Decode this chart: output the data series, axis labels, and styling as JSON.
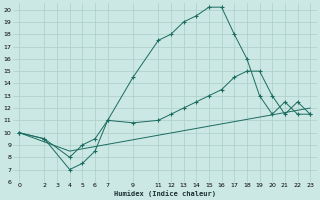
{
  "xlabel": "Humidex (Indice chaleur)",
  "bg_color": "#cce8e4",
  "grid_color": "#aacec8",
  "line_color": "#1a6b60",
  "xlim": [
    -0.5,
    23.5
  ],
  "ylim": [
    6,
    20.5
  ],
  "xticks": [
    0,
    2,
    3,
    4,
    5,
    6,
    7,
    9,
    11,
    12,
    13,
    14,
    15,
    16,
    17,
    18,
    19,
    20,
    21,
    22,
    23
  ],
  "yticks": [
    6,
    7,
    8,
    9,
    10,
    11,
    12,
    13,
    14,
    15,
    16,
    17,
    18,
    19,
    20
  ],
  "line1_x": [
    0,
    2,
    4,
    5,
    6,
    7,
    9,
    11,
    12,
    13,
    14,
    15,
    16,
    17,
    18,
    19,
    20,
    21,
    22,
    23
  ],
  "line1_y": [
    10,
    9.5,
    7,
    7.5,
    8.5,
    11,
    14.5,
    17.5,
    18,
    19,
    19.5,
    20.2,
    20.2,
    18,
    16,
    13.0,
    11.5,
    12.5,
    11.5,
    11.5
  ],
  "line2_x": [
    0,
    2,
    4,
    5,
    6,
    7,
    9,
    11,
    12,
    13,
    14,
    15,
    16,
    17,
    18,
    19,
    20,
    21,
    22,
    23
  ],
  "line2_y": [
    10,
    9.5,
    8,
    9,
    9.5,
    11,
    10.8,
    11.0,
    11.5,
    12,
    12.5,
    13,
    13.5,
    14.5,
    15.0,
    15.0,
    13,
    11.5,
    12.5,
    11.5
  ],
  "line3_x": [
    0,
    4,
    23
  ],
  "line3_y": [
    10,
    8.5,
    12.0
  ]
}
